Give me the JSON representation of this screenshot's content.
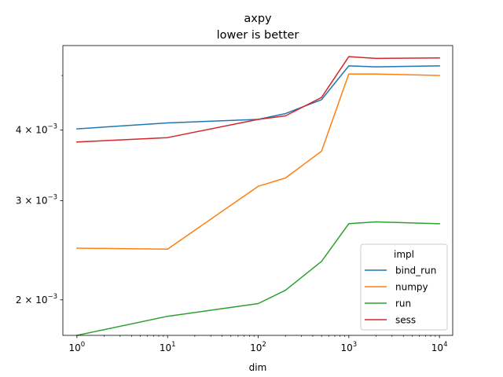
{
  "chart_data": {
    "type": "line",
    "title": "axpy",
    "subtitle": "lower is better",
    "xlabel": "dim",
    "ylabel": "",
    "xscale": "log",
    "yscale": "log",
    "xlim": [
      0.7,
      14000
    ],
    "ylim": [
      0.00173,
      0.00565
    ],
    "x": [
      1,
      10,
      100,
      200,
      500,
      1000,
      2000,
      10000
    ],
    "x_ticks": [
      {
        "value": 1,
        "base": "10",
        "exp": "0"
      },
      {
        "value": 10,
        "base": "10",
        "exp": "1"
      },
      {
        "value": 100,
        "base": "10",
        "exp": "2"
      },
      {
        "value": 1000,
        "base": "10",
        "exp": "3"
      },
      {
        "value": 10000,
        "base": "10",
        "exp": "4"
      }
    ],
    "y_ticks": [
      {
        "value": 0.002,
        "mant": "2",
        "base": "10",
        "exp": "−3"
      },
      {
        "value": 0.003,
        "mant": "3",
        "base": "10",
        "exp": "−3"
      },
      {
        "value": 0.004,
        "mant": "4",
        "base": "10",
        "exp": "−3"
      }
    ],
    "y_minor_ticks": [
      0.005
    ],
    "grid": false,
    "legend": {
      "title": "impl",
      "placement": "lower-right"
    },
    "series": [
      {
        "name": "bind_run",
        "color": "#1f77b4",
        "values": [
          0.00402,
          0.00412,
          0.00418,
          0.00428,
          0.00453,
          0.0052,
          0.00518,
          0.0052
        ]
      },
      {
        "name": "numpy",
        "color": "#ff7f0e",
        "values": [
          0.00247,
          0.00246,
          0.00318,
          0.00329,
          0.00367,
          0.00503,
          0.00503,
          0.005
        ]
      },
      {
        "name": "run",
        "color": "#2ca02c",
        "values": [
          0.00173,
          0.00187,
          0.00197,
          0.00208,
          0.00234,
          0.00273,
          0.00275,
          0.00273
        ]
      },
      {
        "name": "sess",
        "color": "#d62728",
        "values": [
          0.00381,
          0.00388,
          0.00418,
          0.00424,
          0.00457,
          0.0054,
          0.00536,
          0.00537
        ]
      }
    ]
  }
}
